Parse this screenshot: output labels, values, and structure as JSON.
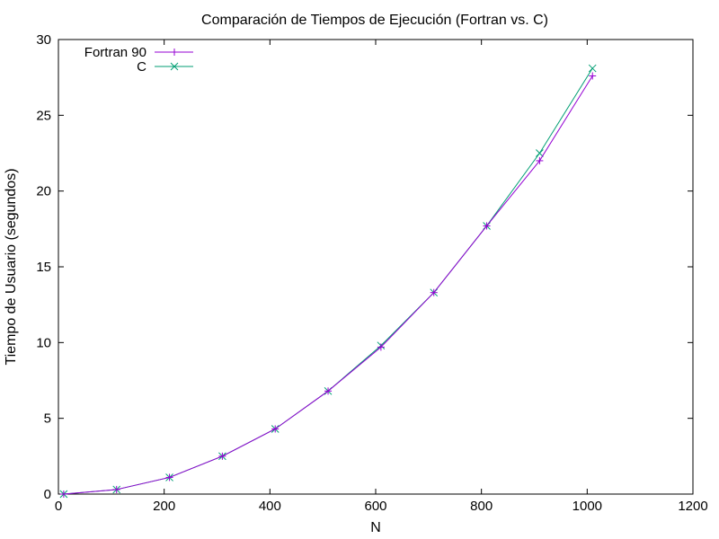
{
  "chart_data": {
    "type": "line",
    "title": "Comparación de Tiempos de Ejecución (Fortran vs. C)",
    "xlabel": "N",
    "ylabel": "Tiempo de Usuario (segundos)",
    "xlim": [
      0,
      1200
    ],
    "ylim": [
      0,
      30
    ],
    "xticks": [
      0,
      200,
      400,
      600,
      800,
      1000,
      1200
    ],
    "yticks": [
      0,
      5,
      10,
      15,
      20,
      25,
      30
    ],
    "grid": false,
    "legend_position": "top-left",
    "x": [
      10,
      110,
      210,
      310,
      410,
      510,
      610,
      710,
      810,
      910,
      1010
    ],
    "series": [
      {
        "name": "Fortran 90",
        "marker": "plus",
        "color": "#9400d3",
        "values": [
          0.0,
          0.3,
          1.1,
          2.5,
          4.3,
          6.8,
          9.7,
          13.3,
          17.7,
          22.0,
          27.6
        ]
      },
      {
        "name": "C",
        "marker": "cross",
        "color": "#009e73",
        "values": [
          0.0,
          0.3,
          1.1,
          2.5,
          4.3,
          6.8,
          9.8,
          13.3,
          17.7,
          22.5,
          28.1
        ]
      }
    ]
  }
}
